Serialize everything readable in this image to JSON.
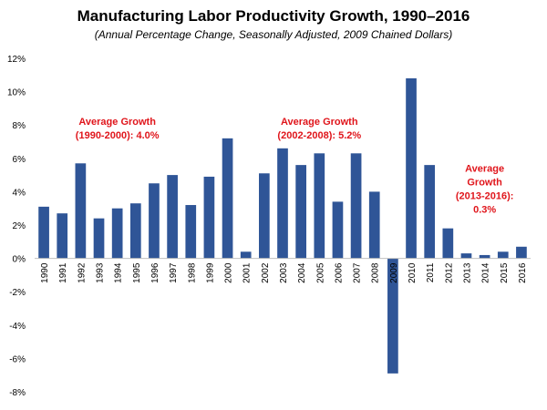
{
  "chart_data": {
    "type": "bar",
    "title": "Manufacturing Labor Productivity Growth, 1990–2016",
    "subtitle": "(Annual Percentage Change, Seasonally Adjusted, 2009 Chained Dollars)",
    "xlabel": "",
    "ylabel": "",
    "ylim": [
      -8,
      12
    ],
    "yticks": [
      -8,
      -6,
      -4,
      -2,
      0,
      2,
      4,
      6,
      8,
      10,
      12
    ],
    "ytick_suffix": "%",
    "grid": false,
    "bar_color": "#2f5597",
    "annotation_color": "#e0151b",
    "categories": [
      "1990",
      "1991",
      "1992",
      "1993",
      "1994",
      "1995",
      "1996",
      "1997",
      "1998",
      "1999",
      "2000",
      "2001",
      "2002",
      "2003",
      "2004",
      "2005",
      "2006",
      "2007",
      "2008",
      "2009",
      "2010",
      "2011",
      "2012",
      "2013",
      "2014",
      "2015",
      "2016"
    ],
    "values": [
      3.1,
      2.7,
      5.7,
      2.4,
      3.0,
      3.3,
      4.5,
      5.0,
      3.2,
      4.9,
      7.2,
      0.4,
      5.1,
      6.6,
      5.6,
      6.3,
      3.4,
      6.3,
      4.0,
      -6.9,
      10.8,
      5.6,
      1.8,
      0.3,
      0.2,
      0.4,
      0.7
    ],
    "annotations": [
      {
        "lines": [
          "Average Growth",
          "(1990-2000): 4.0%"
        ],
        "anchor_category": "1994",
        "anchor_value": 8.0
      },
      {
        "lines": [
          "Average Growth",
          "(2002-2008): 5.2%"
        ],
        "anchor_category": "2005",
        "anchor_value": 8.0
      },
      {
        "lines": [
          "Average",
          "Growth",
          "(2013-2016):",
          "0.3%"
        ],
        "anchor_category": "2014",
        "anchor_value": 5.2
      }
    ]
  }
}
